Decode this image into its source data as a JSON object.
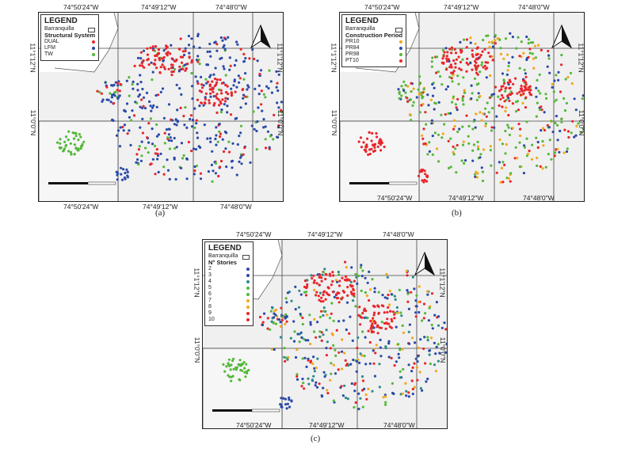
{
  "colors": {
    "red": "#e8262b",
    "blue": "#2a4aa8",
    "green": "#55b83a",
    "orange": "#f2a71b",
    "teal": "#2c8c8a",
    "bg": "#f0f0f0"
  },
  "coords": {
    "top": [
      "74°50'24\"W",
      "74°49'12\"W",
      "74°48'0\"W"
    ],
    "bottom": [
      "74°50'24\"W",
      "74°49'12\"W",
      "74°48'0\"W"
    ],
    "left": [
      "11°1'12\"N",
      "11°0'0\"N"
    ],
    "right": [
      "11°1'12\"N",
      "11°0'0\"N"
    ]
  },
  "panels": [
    {
      "caption": "(a)",
      "legend": {
        "title": "LEGEND",
        "base_label": "Barranquilla",
        "subtitle": "Structural System",
        "items": [
          {
            "label": "DUAL",
            "color": "#e8262b"
          },
          {
            "label": "LFM",
            "color": "#2a4aa8"
          },
          {
            "label": "TW",
            "color": "#55b83a"
          }
        ]
      }
    },
    {
      "caption": "(b)",
      "legend": {
        "title": "LEGEND",
        "base_label": "Barranquilla",
        "subtitle": "Construction Period",
        "items": [
          {
            "label": "PR10",
            "color": "#f2a71b"
          },
          {
            "label": "PR84",
            "color": "#2a4aa8"
          },
          {
            "label": "PR98",
            "color": "#55b83a"
          },
          {
            "label": "PT10",
            "color": "#e8262b"
          }
        ]
      }
    },
    {
      "caption": "(c)",
      "legend": {
        "title": "LEGEND",
        "base_label": "Barranquilla",
        "subtitle": "N° Stories",
        "items": [
          {
            "label": "2",
            "color": "#2a4aa8"
          },
          {
            "label": "3",
            "color": "#2a4aa8"
          },
          {
            "label": "4",
            "color": "#2c8c8a"
          },
          {
            "label": "5",
            "color": "#55b83a"
          },
          {
            "label": "6",
            "color": "#55b83a"
          },
          {
            "label": "7",
            "color": "#f2a71b"
          },
          {
            "label": "8",
            "color": "#f2a71b"
          },
          {
            "label": "9",
            "color": "#e8262b"
          },
          {
            "label": "10",
            "color": "#e8262b"
          }
        ]
      }
    }
  ]
}
